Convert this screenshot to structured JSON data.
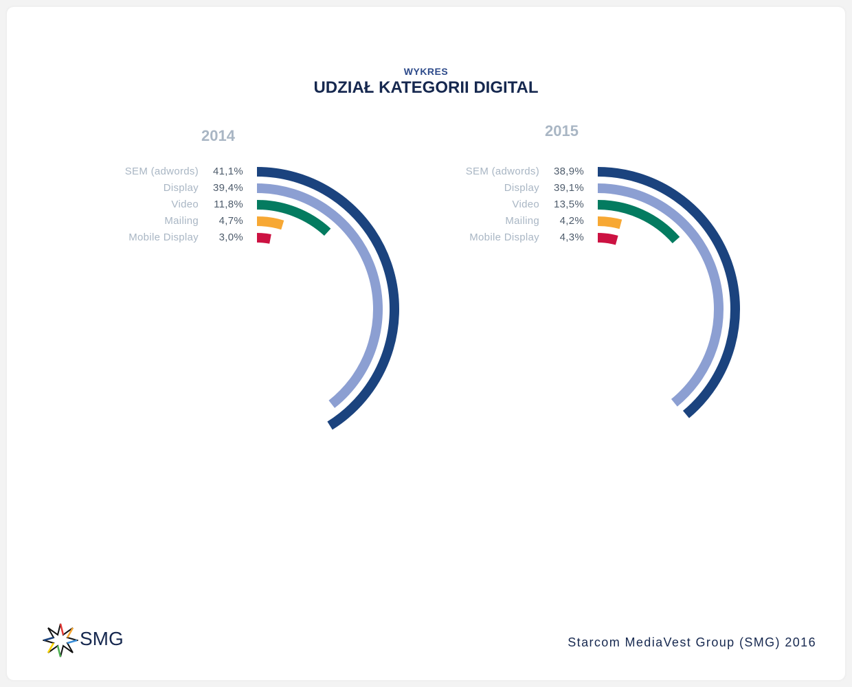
{
  "header": {
    "kicker": "WYKRES",
    "title": "UDZIAŁ KATEGORII DIGITAL"
  },
  "footer": {
    "credit": "Starcom MediaVest Group (SMG) 2016",
    "logo_text": "SMG"
  },
  "chart_data": [
    {
      "type": "radial-bar",
      "title": "2014",
      "categories": [
        "SEM (adwords)",
        "Display",
        "Video",
        "Mailing",
        "Mobile Display"
      ],
      "values": [
        41.1,
        39.4,
        11.8,
        4.7,
        3.0
      ],
      "value_labels": [
        "41,1%",
        "39,4%",
        "11,8%",
        "4,7%",
        "3,0%"
      ],
      "colors": [
        "#1b437e",
        "#8c9fd2",
        "#047b60",
        "#f7a834",
        "#cc1242"
      ]
    },
    {
      "type": "radial-bar",
      "title": "2015",
      "categories": [
        "SEM (adwords)",
        "Display",
        "Video",
        "Mailing",
        "Mobile Display"
      ],
      "values": [
        38.9,
        39.1,
        13.5,
        4.2,
        4.3
      ],
      "value_labels": [
        "38,9%",
        "39,1%",
        "13,5%",
        "4,2%",
        "4,3%"
      ],
      "colors": [
        "#1b437e",
        "#8c9fd2",
        "#047b60",
        "#f7a834",
        "#cc1242"
      ]
    }
  ]
}
